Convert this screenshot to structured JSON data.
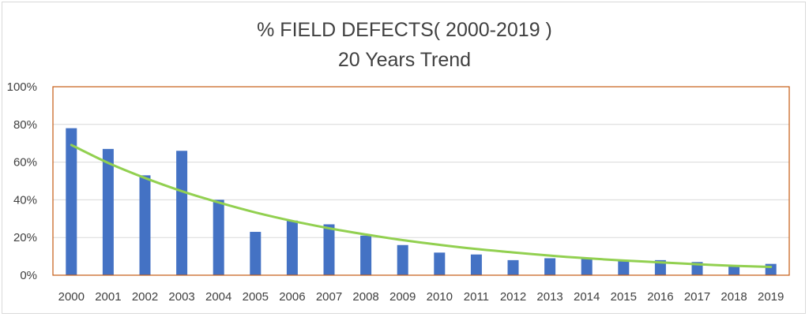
{
  "chart_data": {
    "type": "bar",
    "title": "%  FIELD DEFECTS( 2000-2019 )",
    "subtitle": "20 Years Trend",
    "categories": [
      "2000",
      "2001",
      "2002",
      "2003",
      "2004",
      "2005",
      "2006",
      "2007",
      "2008",
      "2009",
      "2010",
      "2011",
      "2012",
      "2013",
      "2014",
      "2015",
      "2016",
      "2017",
      "2018",
      "2019"
    ],
    "values": [
      78,
      67,
      53,
      66,
      40,
      23,
      29,
      27,
      21,
      16,
      12,
      11,
      8,
      9,
      9,
      8,
      8,
      7,
      5,
      6
    ],
    "trendline": {
      "type": "exponential",
      "values": [
        69.1,
        59.6,
        51.6,
        44.6,
        38.6,
        33.3,
        28.8,
        24.9,
        21.6,
        18.6,
        16.1,
        13.9,
        12.1,
        10.4,
        9.0,
        7.8,
        6.8,
        5.8,
        5.0,
        4.4
      ]
    },
    "y_ticks": [
      "0%",
      "20%",
      "40%",
      "60%",
      "80%",
      "100%"
    ],
    "ylim": [
      0,
      100
    ],
    "xlabel": "",
    "ylabel": "",
    "grid": true,
    "legend": "none",
    "colors": {
      "bar": "#4472c4",
      "trendline": "#92d050",
      "plot_border": "#c55a11",
      "grid": "#d9d9d9",
      "text": "#404040"
    }
  }
}
